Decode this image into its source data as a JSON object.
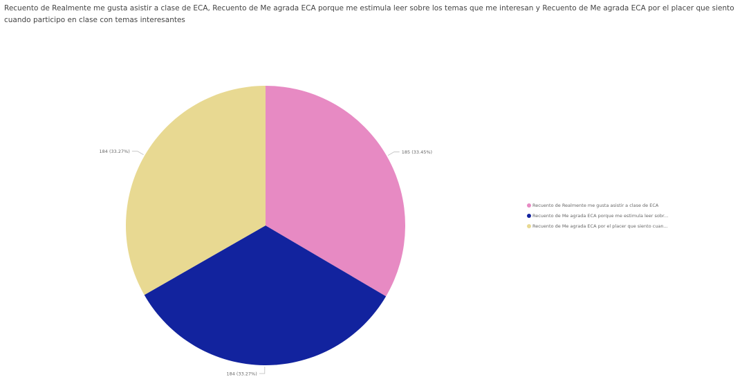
{
  "chart_data": {
    "type": "pie",
    "title": "Recuento de Realmente me gusta asistir a clase de ECA, Recuento de Me agrada ECA porque me estimula leer sobre los temas que me interesan y Recuento de Me agrada ECA por el placer que siento cuando participo en clase con temas interesantes",
    "slices": [
      {
        "name": "Recuento de Realmente me gusta asistir a clase de ECA",
        "legend_label": "Recuento de Realmente me gusta asistir a clase de ECA",
        "value": 185,
        "percent": 33.45,
        "data_label": "185 (33.45%)",
        "color": "#e78ac3"
      },
      {
        "name": "Recuento de Me agrada ECA porque me estimula leer sobre los temas que me interesan",
        "legend_label": "Recuento de Me agrada ECA porque me estimula leer sobr...",
        "value": 184,
        "percent": 33.27,
        "data_label": "184 (33.27%)",
        "color": "#12239e"
      },
      {
        "name": "Recuento de Me agrada ECA por el placer que siento cuando participo en clase con temas interesantes",
        "legend_label": "Recuento de Me agrada ECA por el placer que siento cuan...",
        "value": 184,
        "percent": 33.27,
        "data_label": "184 (33.27%)",
        "color": "#e8d992"
      }
    ],
    "legend_position": "right"
  }
}
